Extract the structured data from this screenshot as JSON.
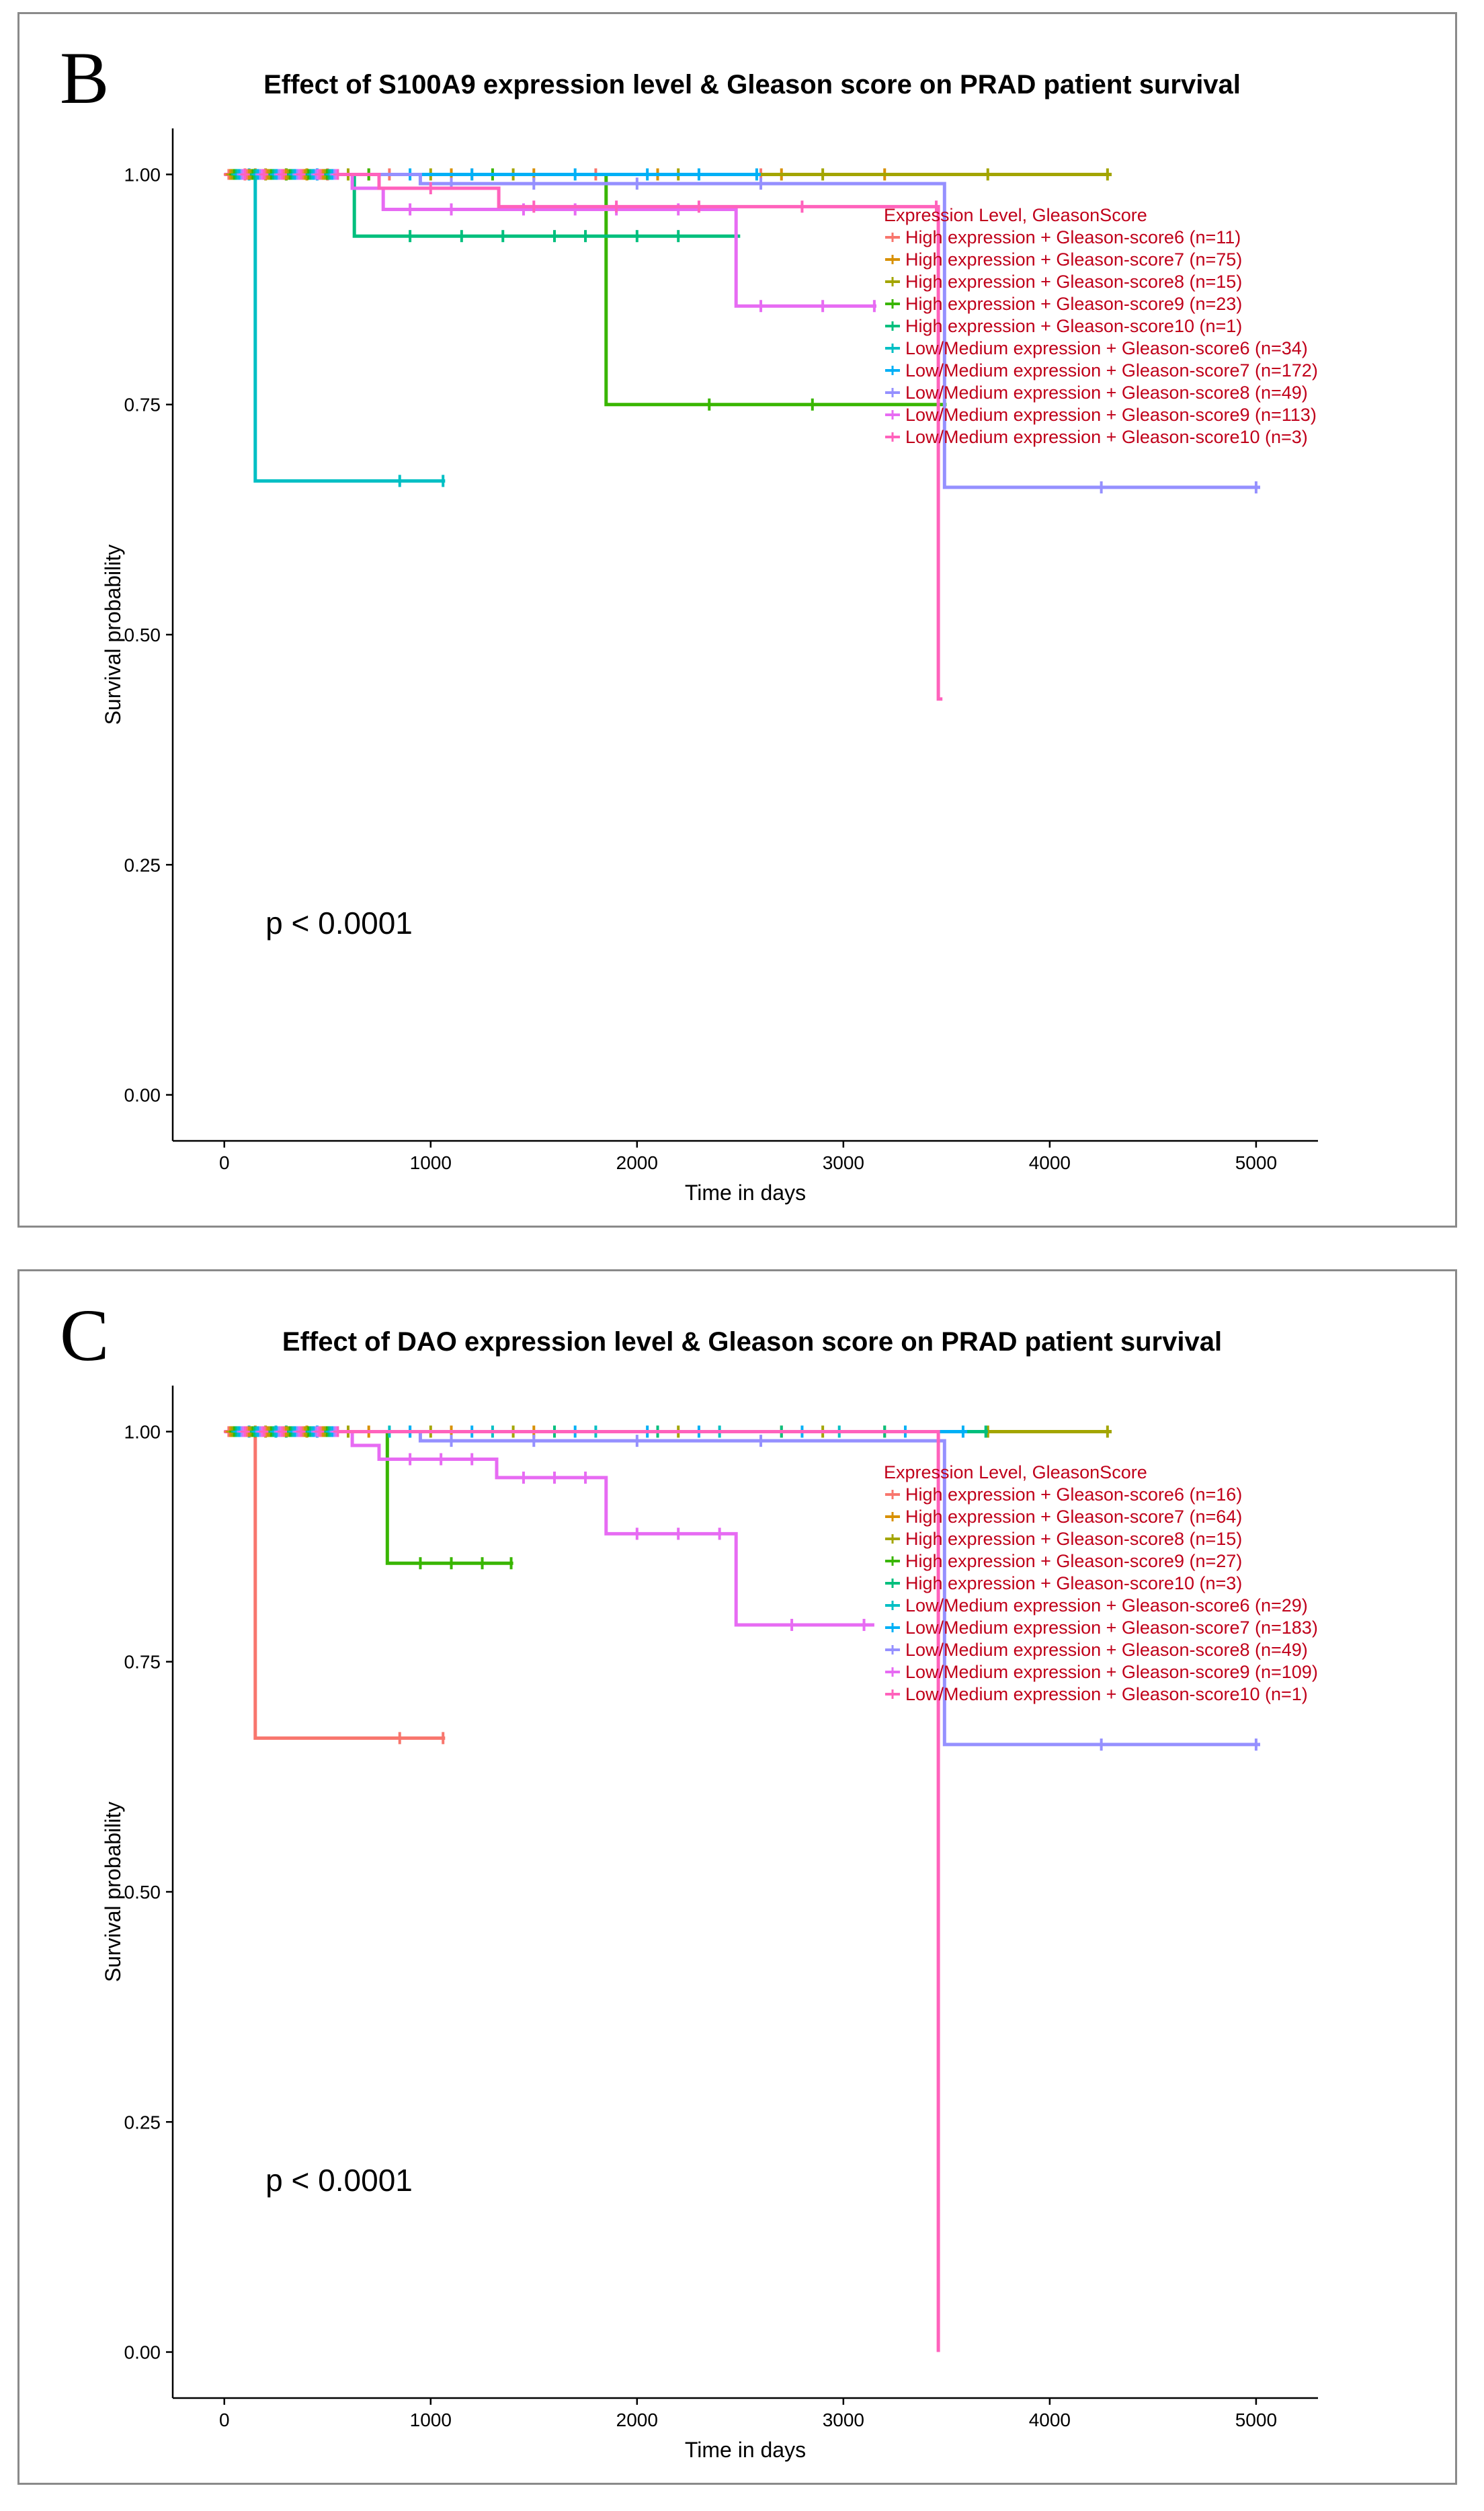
{
  "panels": [
    {
      "letter": "B",
      "chart_data": {
        "type": "line",
        "subtype": "kaplan-meier",
        "title": "Effect of S100A9 expression level & Gleason score on PRAD patient survival",
        "xlabel": "Time in days",
        "ylabel": "Survival probability",
        "xlim": [
          -250,
          5300
        ],
        "ylim": [
          -0.05,
          1.05
        ],
        "xticks": [
          0,
          1000,
          2000,
          3000,
          4000,
          5000
        ],
        "yticks": [
          0.0,
          0.25,
          0.5,
          0.75,
          1.0
        ],
        "ytick_labels": [
          "0.00",
          "0.25",
          "0.50",
          "0.75",
          "1.00"
        ],
        "pvalue": "p < 0.0001",
        "legend_title": "Expression Level, GleasonScore",
        "legend_position": "top-right",
        "grid": false,
        "series": [
          {
            "name": "High expression + Gleason-score6 (n=11)",
            "color": "#F8766D",
            "steps": [
              [
                0,
                1.0
              ],
              [
                3300,
                1.0
              ]
            ],
            "censor": [
              100,
              300,
              500,
              800,
              1200,
              1800,
              2600
            ]
          },
          {
            "name": "High expression + Gleason-score7 (n=75)",
            "color": "#D89000",
            "steps": [
              [
                0,
                1.0
              ],
              [
                3400,
                1.0
              ]
            ],
            "censor": [
              150,
              400,
              700,
              1100,
              1500,
              2100,
              2700,
              3200
            ]
          },
          {
            "name": "High expression + Gleason-score8 (n=15)",
            "color": "#A3A500",
            "steps": [
              [
                0,
                1.0
              ],
              [
                4300,
                1.0
              ]
            ],
            "censor": [
              200,
              600,
              1000,
              1400,
              2200,
              2900,
              3700,
              4280
            ]
          },
          {
            "name": "High expression + Gleason-score9 (n=23)",
            "color": "#39B600",
            "steps": [
              [
                0,
                1.0
              ],
              [
                1850,
                1.0
              ],
              [
                1850,
                0.75
              ],
              [
                3500,
                0.75
              ]
            ],
            "censor": [
              300,
              700,
              1300,
              2350,
              2850
            ]
          },
          {
            "name": "High expression + Gleason-score10 (n=1)",
            "color": "#00BF7D",
            "steps": [
              [
                0,
                1.0
              ],
              [
                630,
                1.0
              ],
              [
                630,
                0.933
              ],
              [
                2500,
                0.933
              ]
            ],
            "censor": [
              900,
              1150,
              1350,
              1600,
              1750,
              2000,
              2200,
              2480
            ]
          },
          {
            "name": "Low/Medium expression + Gleason-score6 (n=34)",
            "color": "#00BFC4",
            "steps": [
              [
                0,
                1.0
              ],
              [
                150,
                1.0
              ],
              [
                150,
                0.667
              ],
              [
                1070,
                0.667
              ]
            ],
            "censor": [
              850,
              1060
            ]
          },
          {
            "name": "Low/Medium expression + Gleason-score7 (n=172)",
            "color": "#00B0F6",
            "steps": [
              [
                0,
                1.0
              ],
              [
                2600,
                1.0
              ]
            ],
            "censor": [
              120,
              450,
              900,
              1200,
              1700,
              2050,
              2300,
              2580
            ]
          },
          {
            "name": "Low/Medium expression + Gleason-score8 (n=49)",
            "color": "#9590FF",
            "steps": [
              [
                0,
                1.0
              ],
              [
                950,
                1.0
              ],
              [
                950,
                0.99
              ],
              [
                3490,
                0.99
              ],
              [
                3490,
                0.66
              ],
              [
                5020,
                0.66
              ]
            ],
            "censor": [
              1100,
              1500,
              2000,
              2600,
              4250,
              5000
            ]
          },
          {
            "name": "Low/Medium expression + Gleason-score9 (n=113)",
            "color": "#E76BF3",
            "steps": [
              [
                0,
                1.0
              ],
              [
                620,
                1.0
              ],
              [
                620,
                0.985
              ],
              [
                770,
                0.985
              ],
              [
                770,
                0.962
              ],
              [
                2480,
                0.962
              ],
              [
                2480,
                0.857
              ],
              [
                3160,
                0.857
              ]
            ],
            "censor": [
              900,
              1100,
              1450,
              1700,
              1900,
              2200,
              2600,
              2900,
              3150
            ]
          },
          {
            "name": "Low/Medium expression + Gleason-score10 (n=3)",
            "color": "#FF62BC",
            "steps": [
              [
                0,
                1.0
              ],
              [
                750,
                1.0
              ],
              [
                750,
                0.985
              ],
              [
                1330,
                0.985
              ],
              [
                1330,
                0.965
              ],
              [
                3460,
                0.965
              ],
              [
                3460,
                0.43
              ],
              [
                3480,
                0.43
              ]
            ],
            "censor": [
              1000,
              1500,
              1900,
              2300,
              2800,
              3450
            ]
          }
        ]
      }
    },
    {
      "letter": "C",
      "chart_data": {
        "type": "line",
        "subtype": "kaplan-meier",
        "title": "Effect of DAO expression level & Gleason score on PRAD patient survival",
        "xlabel": "Time in days",
        "ylabel": "Survival probability",
        "xlim": [
          -250,
          5300
        ],
        "ylim": [
          -0.05,
          1.05
        ],
        "xticks": [
          0,
          1000,
          2000,
          3000,
          4000,
          5000
        ],
        "yticks": [
          0.0,
          0.25,
          0.5,
          0.75,
          1.0
        ],
        "ytick_labels": [
          "0.00",
          "0.25",
          "0.50",
          "0.75",
          "1.00"
        ],
        "pvalue": "p < 0.0001",
        "legend_title": "Expression Level, GleasonScore",
        "legend_position": "top-right",
        "grid": false,
        "series": [
          {
            "name": "High expression + Gleason-score6 (n=16)",
            "color": "#F8766D",
            "steps": [
              [
                0,
                1.0
              ],
              [
                150,
                1.0
              ],
              [
                150,
                0.667
              ],
              [
                1070,
                0.667
              ]
            ],
            "censor": [
              850,
              1060
            ]
          },
          {
            "name": "High expression + Gleason-score7 (n=64)",
            "color": "#D89000",
            "steps": [
              [
                0,
                1.0
              ],
              [
                3300,
                1.0
              ]
            ],
            "censor": [
              150,
              400,
              700,
              1100,
              1500,
              2100,
              2700,
              3200
            ]
          },
          {
            "name": "High expression + Gleason-score8 (n=15)",
            "color": "#A3A500",
            "steps": [
              [
                0,
                1.0
              ],
              [
                4300,
                1.0
              ]
            ],
            "censor": [
              200,
              600,
              1000,
              1400,
              2200,
              2900,
              3700,
              4280
            ]
          },
          {
            "name": "High expression + Gleason-score9 (n=27)",
            "color": "#39B600",
            "steps": [
              [
                0,
                1.0
              ],
              [
                790,
                1.0
              ],
              [
                790,
                0.857
              ],
              [
                1400,
                0.857
              ]
            ],
            "censor": [
              950,
              1100,
              1250,
              1390
            ]
          },
          {
            "name": "High expression + Gleason-score10 (n=3)",
            "color": "#00BF7D",
            "steps": [
              [
                0,
                1.0
              ],
              [
                3700,
                1.0
              ]
            ],
            "censor": [
              300,
              900,
              1600,
              2100,
              2700,
              3200,
              3690
            ]
          },
          {
            "name": "Low/Medium expression + Gleason-score6 (n=29)",
            "color": "#00BFC4",
            "steps": [
              [
                0,
                1.0
              ],
              [
                3000,
                1.0
              ]
            ],
            "censor": [
              250,
              800,
              1300,
              1800,
              2400,
              2980
            ]
          },
          {
            "name": "Low/Medium expression + Gleason-score7 (n=183)",
            "color": "#00B0F6",
            "steps": [
              [
                0,
                1.0
              ],
              [
                3600,
                1.0
              ]
            ],
            "censor": [
              120,
              450,
              900,
              1200,
              1700,
              2050,
              2300,
              2800,
              3300,
              3580
            ]
          },
          {
            "name": "Low/Medium expression + Gleason-score8 (n=49)",
            "color": "#9590FF",
            "steps": [
              [
                0,
                1.0
              ],
              [
                950,
                1.0
              ],
              [
                950,
                0.99
              ],
              [
                3490,
                0.99
              ],
              [
                3490,
                0.66
              ],
              [
                5020,
                0.66
              ]
            ],
            "censor": [
              1100,
              1500,
              2000,
              2600,
              4250,
              5000
            ]
          },
          {
            "name": "Low/Medium expression + Gleason-score9 (n=109)",
            "color": "#E76BF3",
            "steps": [
              [
                0,
                1.0
              ],
              [
                620,
                1.0
              ],
              [
                620,
                0.985
              ],
              [
                750,
                0.985
              ],
              [
                750,
                0.97
              ],
              [
                1320,
                0.97
              ],
              [
                1320,
                0.95
              ],
              [
                1850,
                0.95
              ],
              [
                1850,
                0.889
              ],
              [
                2480,
                0.889
              ],
              [
                2480,
                0.79
              ],
              [
                3150,
                0.79
              ]
            ],
            "censor": [
              900,
              1050,
              1200,
              1450,
              1600,
              1750,
              2000,
              2200,
              2400,
              2750,
              3100
            ]
          },
          {
            "name": "Low/Medium expression + Gleason-score10 (n=1)",
            "color": "#FF62BC",
            "steps": [
              [
                0,
                1.0
              ],
              [
                3460,
                1.0
              ],
              [
                3460,
                0.0
              ]
            ],
            "censor": []
          }
        ]
      }
    }
  ]
}
